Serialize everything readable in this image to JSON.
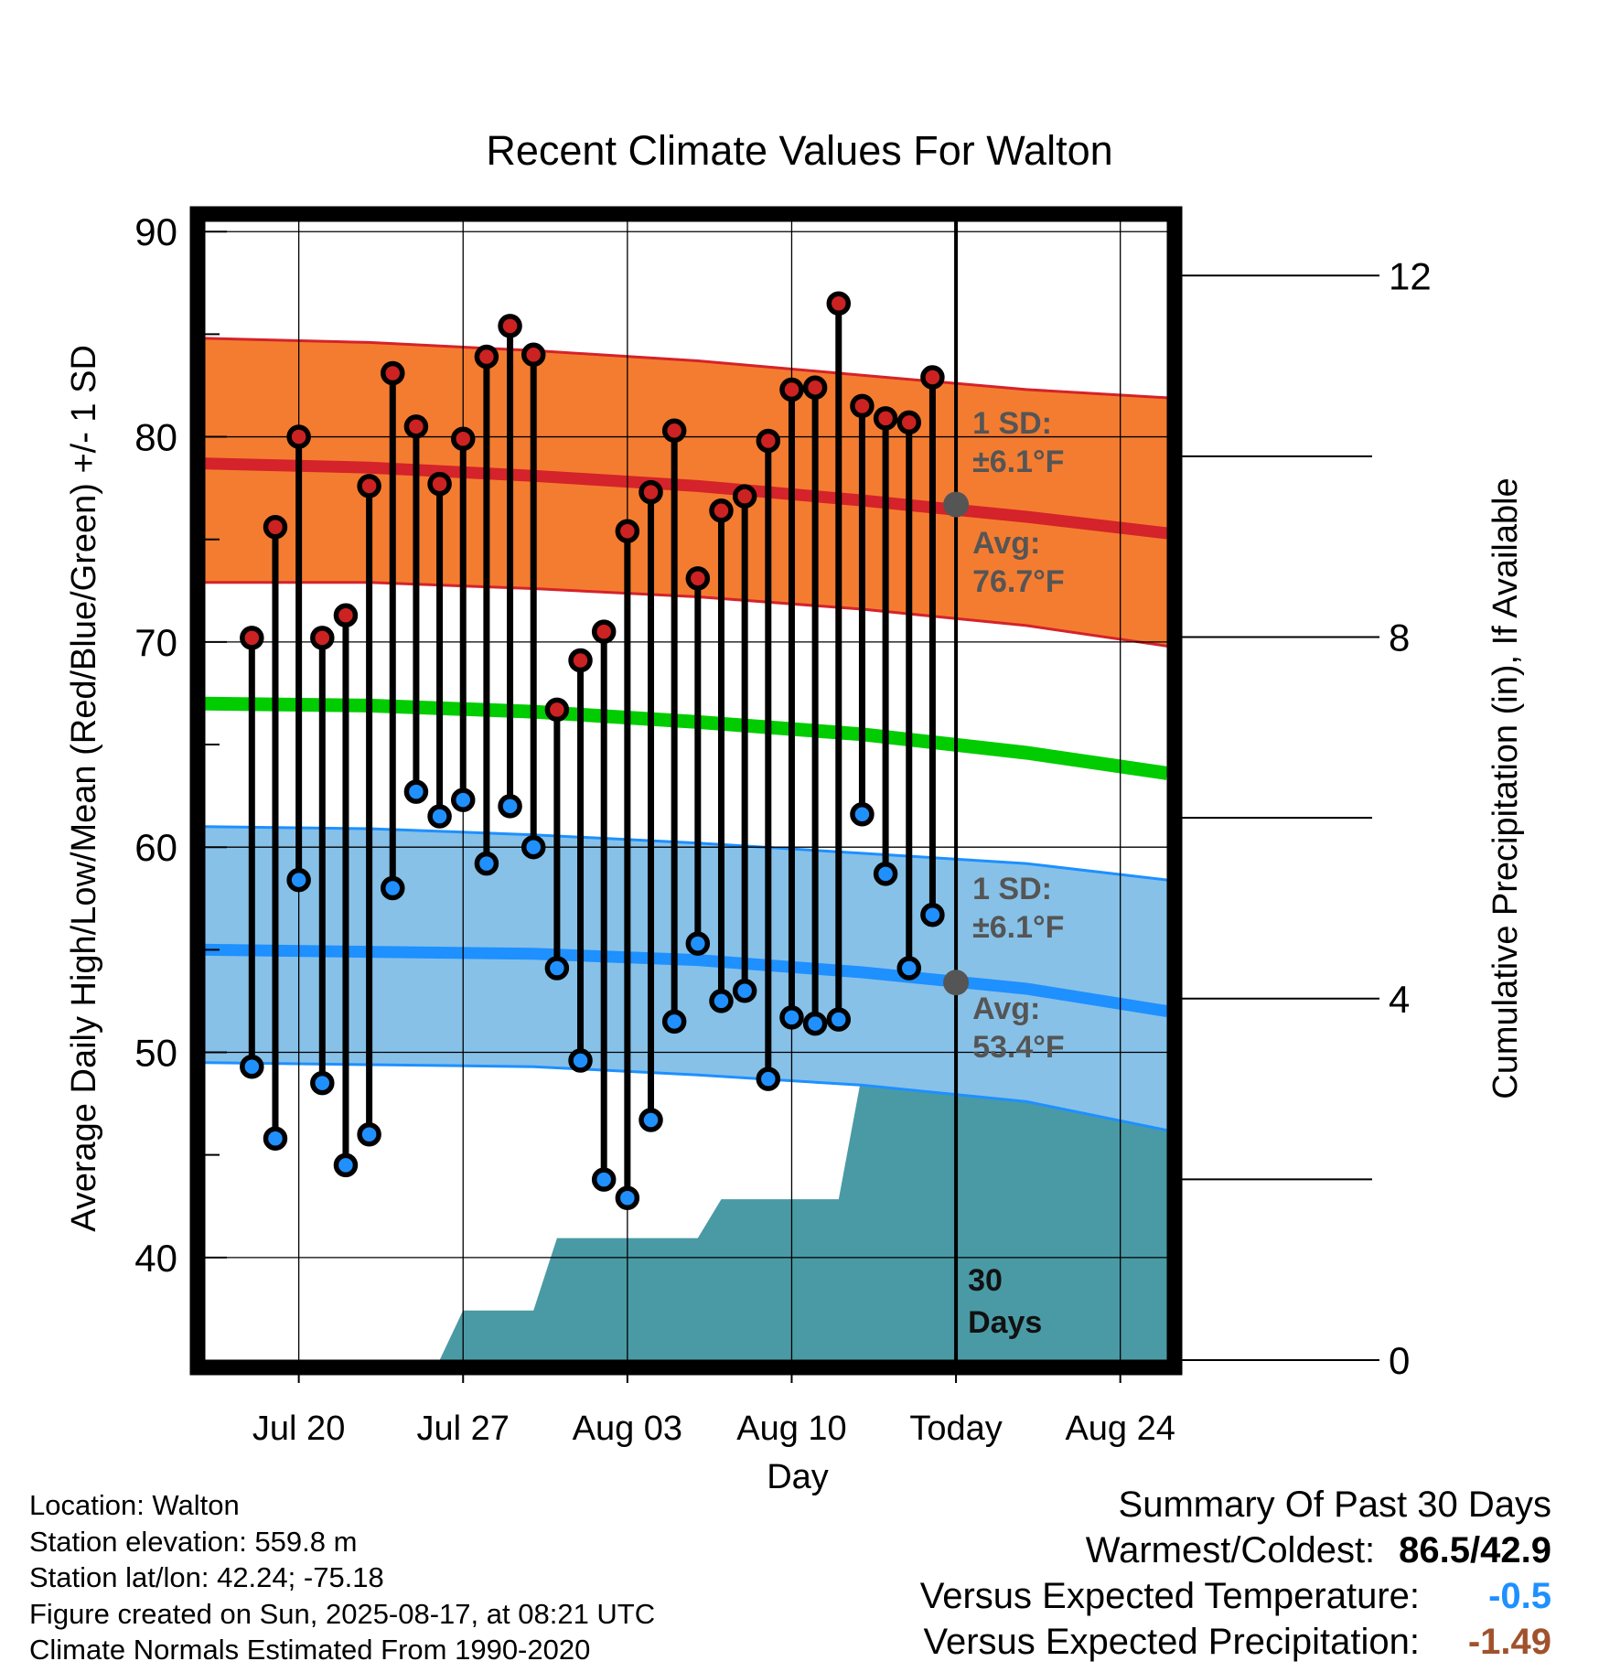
{
  "chart_data": {
    "type": "line",
    "title": "Recent Climate Values For Walton",
    "xlabel": "Day",
    "ylabel": "Average Daily High/Low/Mean (Red/Blue/Green) +/- 1 SD",
    "ylabel_right": "Cumulative Precipitation (in), If Available",
    "x_tick_labels": [
      "Jul 20",
      "Jul 27",
      "Aug 03",
      "Aug 10",
      "Today",
      "Aug 24"
    ],
    "x_tick_dates": [
      "2025-07-20",
      "2025-07-27",
      "2025-08-03",
      "2025-08-10",
      "2025-08-17",
      "2025-08-24"
    ],
    "xlim": [
      "2025-07-16",
      "2025-08-26"
    ],
    "ylim": [
      35,
      90.5
    ],
    "y_ticks": [
      40,
      50,
      60,
      70,
      80,
      90
    ],
    "y2lim": [
      0,
      12.6
    ],
    "y2_ticks": [
      0,
      4,
      8,
      12
    ],
    "grid": true,
    "dates": [
      "2025-07-18",
      "2025-07-19",
      "2025-07-20",
      "2025-07-21",
      "2025-07-22",
      "2025-07-23",
      "2025-07-24",
      "2025-07-25",
      "2025-07-26",
      "2025-07-27",
      "2025-07-28",
      "2025-07-29",
      "2025-07-30",
      "2025-07-31",
      "2025-08-01",
      "2025-08-02",
      "2025-08-03",
      "2025-08-04",
      "2025-08-05",
      "2025-08-06",
      "2025-08-07",
      "2025-08-08",
      "2025-08-09",
      "2025-08-10",
      "2025-08-11",
      "2025-08-12",
      "2025-08-13",
      "2025-08-14",
      "2025-08-15",
      "2025-08-16"
    ],
    "daily_high": [
      70.2,
      75.6,
      80.0,
      70.2,
      71.3,
      77.6,
      83.1,
      80.5,
      77.7,
      79.9,
      83.9,
      85.4,
      84.0,
      66.7,
      69.1,
      70.5,
      75.4,
      77.3,
      80.3,
      73.1,
      76.4,
      77.1,
      79.8,
      82.3,
      82.4,
      86.5,
      81.5,
      80.9,
      80.7,
      82.9
    ],
    "daily_low": [
      49.3,
      45.8,
      58.4,
      48.5,
      44.5,
      46.0,
      58.0,
      62.7,
      61.5,
      62.3,
      59.2,
      62.0,
      60.0,
      54.1,
      49.6,
      43.8,
      42.9,
      46.7,
      51.5,
      55.3,
      52.5,
      53.0,
      48.7,
      51.7,
      51.4,
      51.6,
      61.6,
      58.7,
      54.1,
      56.7
    ],
    "normals_dates": [
      "2025-07-16",
      "2025-07-23",
      "2025-07-30",
      "2025-08-06",
      "2025-08-13",
      "2025-08-20",
      "2025-08-26"
    ],
    "high_avg": [
      78.7,
      78.5,
      78.1,
      77.6,
      76.9,
      76.1,
      75.3
    ],
    "high_plus_sd": [
      84.8,
      84.6,
      84.2,
      83.7,
      83.0,
      82.3,
      81.9
    ],
    "high_minus_sd": [
      72.9,
      72.9,
      72.6,
      72.2,
      71.6,
      70.8,
      69.8
    ],
    "mean_avg": [
      67.0,
      66.9,
      66.6,
      66.1,
      65.5,
      64.6,
      63.6
    ],
    "low_avg": [
      55.0,
      54.9,
      54.8,
      54.5,
      53.9,
      53.1,
      52.0
    ],
    "low_plus_sd": [
      61.0,
      60.9,
      60.6,
      60.2,
      59.7,
      59.2,
      58.4
    ],
    "low_minus_sd": [
      49.5,
      49.4,
      49.3,
      48.9,
      48.4,
      47.6,
      46.2
    ],
    "precip_steps": [
      {
        "date": "2025-07-26",
        "value": 0.0
      },
      {
        "date": "2025-07-27",
        "value": 0.55
      },
      {
        "date": "2025-07-30",
        "value": 0.55
      },
      {
        "date": "2025-07-31",
        "value": 1.35
      },
      {
        "date": "2025-08-06",
        "value": 1.35
      },
      {
        "date": "2025-08-07",
        "value": 1.78
      },
      {
        "date": "2025-08-12",
        "value": 1.78
      },
      {
        "date": "2025-08-13",
        "value": 3.17
      },
      {
        "date": "2025-08-26",
        "value": 3.17
      }
    ],
    "high_sd_label": "1 SD:",
    "high_sd_value": "±6.1°F",
    "high_avg_label": "Avg:",
    "high_avg_value": "76.7°F",
    "low_sd_label": "1 SD:",
    "low_sd_value": "±6.1°F",
    "low_avg_label": "Avg:",
    "low_avg_value": "53.4°F",
    "today_avg_high": 76.7,
    "today_avg_low": 53.4,
    "window_label_line1": "30",
    "window_label_line2": "Days",
    "colors": {
      "high_band": "#f47c30",
      "high_line": "#d4232a",
      "mean_line": "#00cc00",
      "low_band": "#87c1e8",
      "low_line": "#1e90ff",
      "precip": "#4a9aa5",
      "high_marker": "#cc2222",
      "low_marker": "#2090ff",
      "annotation": "#555555"
    }
  },
  "info": {
    "location": "Location: Walton",
    "elevation": "Station elevation: 559.8 m",
    "latlon": "Station lat/lon: 42.24; -75.18",
    "created": "Figure created on Sun, 2025-08-17, at 08:21 UTC",
    "normals": "Climate Normals Estimated From 1990-2020"
  },
  "summary": {
    "title": "Summary Of Past 30 Days",
    "warmest_coldest_label": "Warmest/Coldest:",
    "warmest_coldest_value": "86.5/42.9",
    "temp_label": "Versus Expected Temperature:",
    "temp_value": "-0.5",
    "temp_color": "#1e90ff",
    "precip_label": "Versus Expected Precipitation:",
    "precip_value": "-1.49",
    "precip_color": "#a0522d"
  }
}
